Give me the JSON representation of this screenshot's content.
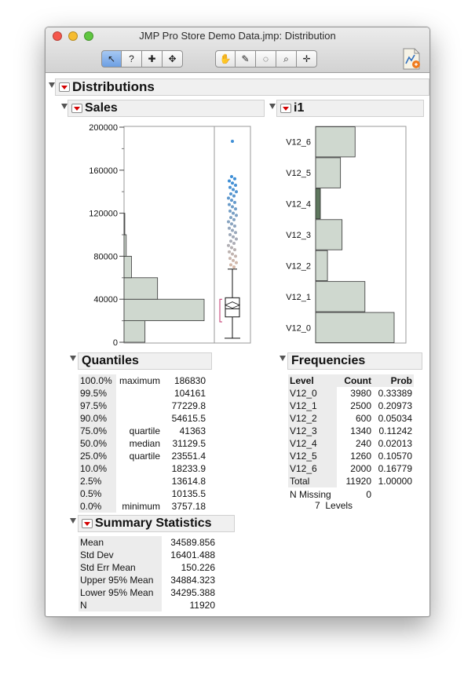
{
  "window": {
    "title": "JMP Pro Store Demo Data.jmp: Distribution"
  },
  "toolbar": {
    "group1": [
      {
        "icon": "arrow-icon",
        "glyph": "↖",
        "active": true
      },
      {
        "icon": "help-icon",
        "glyph": "?"
      },
      {
        "icon": "zoom-cross-icon",
        "glyph": "✚"
      },
      {
        "icon": "move-icon",
        "glyph": "✥"
      }
    ],
    "group2": [
      {
        "icon": "hand-icon",
        "glyph": "✋"
      },
      {
        "icon": "brush-icon",
        "glyph": "✎"
      },
      {
        "icon": "lasso-icon",
        "glyph": "◌"
      },
      {
        "icon": "magnifier-icon",
        "glyph": "⌕"
      },
      {
        "icon": "crosshair-icon",
        "glyph": "✛"
      }
    ]
  },
  "report": {
    "distributions_title": "Distributions",
    "sales_title": "Sales",
    "i1_title": "i1",
    "quantiles_title": "Quantiles",
    "frequencies_title": "Frequencies",
    "summary_title": "Summary Statistics"
  },
  "quantiles": [
    {
      "pct": "100.0%",
      "label": "maximum",
      "value": "186830"
    },
    {
      "pct": "99.5%",
      "label": "",
      "value": "104161"
    },
    {
      "pct": "97.5%",
      "label": "",
      "value": "77229.8"
    },
    {
      "pct": "90.0%",
      "label": "",
      "value": "54615.5"
    },
    {
      "pct": "75.0%",
      "label": "quartile",
      "value": "41363"
    },
    {
      "pct": "50.0%",
      "label": "median",
      "value": "31129.5"
    },
    {
      "pct": "25.0%",
      "label": "quartile",
      "value": "23551.4"
    },
    {
      "pct": "10.0%",
      "label": "",
      "value": "18233.9"
    },
    {
      "pct": "2.5%",
      "label": "",
      "value": "13614.8"
    },
    {
      "pct": "0.5%",
      "label": "",
      "value": "10135.5"
    },
    {
      "pct": "0.0%",
      "label": "minimum",
      "value": "3757.18"
    }
  ],
  "summary": [
    {
      "label": "Mean",
      "value": "34589.856"
    },
    {
      "label": "Std Dev",
      "value": "16401.488"
    },
    {
      "label": "Std Err Mean",
      "value": "150.226"
    },
    {
      "label": "Upper 95% Mean",
      "value": "34884.323"
    },
    {
      "label": "Lower 95% Mean",
      "value": "34295.388"
    },
    {
      "label": "N",
      "value": "11920"
    }
  ],
  "frequencies": {
    "headers": [
      "Level",
      "Count",
      "Prob"
    ],
    "rows": [
      {
        "level": "V12_0",
        "count": "3980",
        "prob": "0.33389"
      },
      {
        "level": "V12_1",
        "count": "2500",
        "prob": "0.20973"
      },
      {
        "level": "V12_2",
        "count": "600",
        "prob": "0.05034"
      },
      {
        "level": "V12_3",
        "count": "1340",
        "prob": "0.11242"
      },
      {
        "level": "V12_4",
        "count": "240",
        "prob": "0.02013"
      },
      {
        "level": "V12_5",
        "count": "1260",
        "prob": "0.10570"
      },
      {
        "level": "V12_6",
        "count": "2000",
        "prob": "0.16779"
      }
    ],
    "total": {
      "level": "Total",
      "count": "11920",
      "prob": "1.00000"
    },
    "n_missing_label": "N Missing",
    "n_missing_value": "0",
    "levels_text": "7  Levels"
  },
  "chart_data": [
    {
      "type": "bar",
      "orientation": "horizontal",
      "title": "Sales",
      "y_ticks": [
        0,
        40000,
        80000,
        120000,
        160000,
        200000
      ],
      "y_tick_labels": [
        "0",
        "40000",
        "80000",
        "120000",
        "160000",
        "200000"
      ],
      "ylim": [
        0,
        200000
      ],
      "bins": [
        {
          "from": 0,
          "to": 20000,
          "count": 1250
        },
        {
          "from": 20000,
          "to": 40000,
          "count": 4780
        },
        {
          "from": 40000,
          "to": 60000,
          "count": 2000
        },
        {
          "from": 60000,
          "to": 80000,
          "count": 440
        },
        {
          "from": 80000,
          "to": 100000,
          "count": 130
        },
        {
          "from": 100000,
          "to": 120000,
          "count": 45
        }
      ],
      "boxplot": {
        "min": 3757.18,
        "q1": 23551.4,
        "median": 31129.5,
        "q3": 41363,
        "max": 68000,
        "mean": 34589.856,
        "ci_low": 19000,
        "ci_high": 40000
      },
      "outliers": [
        186830,
        154000,
        152000,
        150000,
        148000,
        146000,
        144000,
        142000,
        140000,
        138000,
        136000,
        134000,
        132000,
        130000,
        128000,
        126000,
        124000,
        122000,
        120000,
        118000,
        116000,
        114000,
        112000,
        110000,
        108000,
        106000,
        104000,
        102000,
        100000,
        98000,
        96000,
        94000,
        92000,
        90000,
        88000,
        86000,
        84000,
        82000,
        80000,
        78000,
        76000,
        74000,
        72000,
        70000
      ],
      "colors": {
        "bar": "#cfd8cf",
        "outlier_high": "#3f8fd6",
        "outlier_low": "#d7b9a8"
      }
    },
    {
      "type": "bar",
      "orientation": "horizontal",
      "title": "i1",
      "categories": [
        "V12_0",
        "V12_1",
        "V12_2",
        "V12_3",
        "V12_4",
        "V12_5",
        "V12_6"
      ],
      "values": [
        3980,
        2500,
        600,
        1340,
        240,
        1260,
        2000
      ],
      "colors": {
        "bar": "#cfd8cf",
        "highlight": "#5e775e"
      }
    }
  ]
}
